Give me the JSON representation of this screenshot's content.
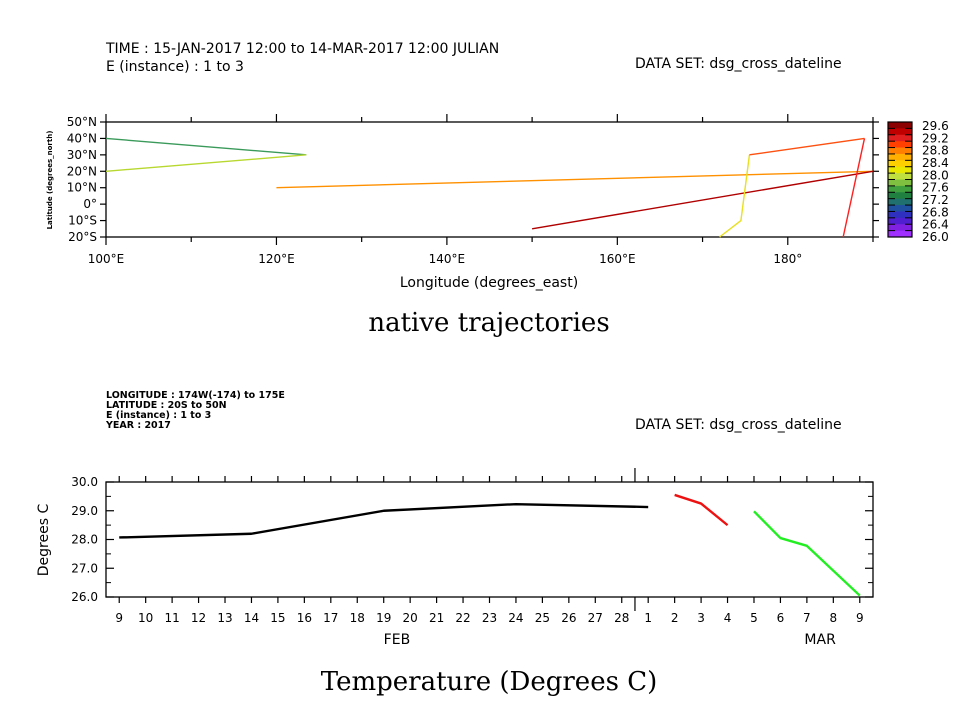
{
  "chart_data": [
    {
      "type": "line",
      "header": {
        "line1": "TIME : 15-JAN-2017 12:00 to 14-MAR-2017 12:00 JULIAN",
        "line2": "E (instance) : 1 to 3",
        "dataset": "DATA SET: dsg_cross_dateline"
      },
      "title": "native trajectories",
      "xlabel": "Longitude (degrees_east)",
      "ylabel": "Latitude (degrees_north)",
      "xlim": [
        100,
        190
      ],
      "ylim": [
        -20,
        50
      ],
      "x_ticks": [
        {
          "value": 100,
          "label": "100°E"
        },
        {
          "value": 120,
          "label": "120°E"
        },
        {
          "value": 140,
          "label": "140°E"
        },
        {
          "value": 160,
          "label": "160°E"
        },
        {
          "value": 180,
          "label": "180°"
        }
      ],
      "y_ticks": [
        {
          "value": 50,
          "label": "50°N"
        },
        {
          "value": 40,
          "label": "40°N"
        },
        {
          "value": 30,
          "label": "30°N"
        },
        {
          "value": 20,
          "label": "20°N"
        },
        {
          "value": 10,
          "label": "10°N"
        },
        {
          "value": 0,
          "label": "0°"
        },
        {
          "value": -10,
          "label": "10°S"
        },
        {
          "value": -20,
          "label": "20°S"
        }
      ],
      "colorbar": {
        "labels": [
          "29.6",
          "29.2",
          "28.8",
          "28.4",
          "28.0",
          "27.6",
          "27.2",
          "26.8",
          "26.4",
          "26.0"
        ],
        "colors": [
          "#8b0000",
          "#c00000",
          "#e02020",
          "#ff4000",
          "#ff8000",
          "#ffb000",
          "#ffd000",
          "#e8e800",
          "#c0e040",
          "#80c040",
          "#40a040",
          "#208040",
          "#207070",
          "#2050a0",
          "#3030c0",
          "#5020d0",
          "#8020e0",
          "#a030ff"
        ]
      },
      "segments": [
        {
          "lon": [
            100,
            123.5
          ],
          "lat": [
            40,
            30
          ],
          "color": "#3a9a5a"
        },
        {
          "lon": [
            123.5,
            100
          ],
          "lat": [
            30,
            20
          ],
          "color": "#b8d830"
        },
        {
          "lon": [
            120,
            190
          ],
          "lat": [
            10,
            20
          ],
          "color": "#ff9000"
        },
        {
          "lon": [
            190,
            150
          ],
          "lat": [
            20,
            -15
          ],
          "color": "#b00000"
        },
        {
          "lon": [
            172,
            174.5,
            175.5
          ],
          "lat": [
            -20,
            -10,
            30
          ],
          "color": "#e8e020"
        },
        {
          "lon": [
            175.5,
            189
          ],
          "lat": [
            30,
            40
          ],
          "color": "#ff5010"
        },
        {
          "lon": [
            189,
            186.5
          ],
          "lat": [
            40,
            -20
          ],
          "color": "#ff2020"
        }
      ]
    },
    {
      "type": "line",
      "header": {
        "line1": "LONGITUDE : 174W(-174) to 175E",
        "line2": "LATITUDE : 20S to 50N",
        "line3": "E (instance) : 1 to 3",
        "line4": "YEAR : 2017",
        "dataset": "DATA SET: dsg_cross_dateline"
      },
      "title": "Temperature (Degrees C)",
      "ylabel": "Degrees C",
      "ylim": [
        26.0,
        30.0
      ],
      "y_ticks": [
        "30.0",
        "29.0",
        "28.0",
        "27.0",
        "26.0"
      ],
      "x_ticks": [
        "9",
        "10",
        "11",
        "12",
        "13",
        "14",
        "15",
        "16",
        "17",
        "18",
        "19",
        "20",
        "21",
        "22",
        "23",
        "24",
        "25",
        "26",
        "27",
        "28",
        "1",
        "2",
        "3",
        "4",
        "5",
        "6",
        "7",
        "8",
        "9"
      ],
      "month_labels": [
        {
          "label": "FEB",
          "at_day": 19.5
        },
        {
          "label": "MAR",
          "at_day": 35.5
        }
      ],
      "x_range_days": [
        8.5,
        37.5
      ],
      "series": [
        {
          "color": "#000000",
          "x": [
            9,
            14,
            19,
            24,
            29
          ],
          "y": [
            28.07,
            28.2,
            29.0,
            29.23,
            29.13
          ]
        },
        {
          "color": "#ee1111",
          "x": [
            30,
            31,
            32
          ],
          "y": [
            29.55,
            29.25,
            28.5
          ]
        },
        {
          "color": "#22ee22",
          "x": [
            33,
            34,
            35,
            37
          ],
          "y": [
            28.98,
            28.05,
            27.78,
            26.05
          ]
        }
      ]
    }
  ]
}
